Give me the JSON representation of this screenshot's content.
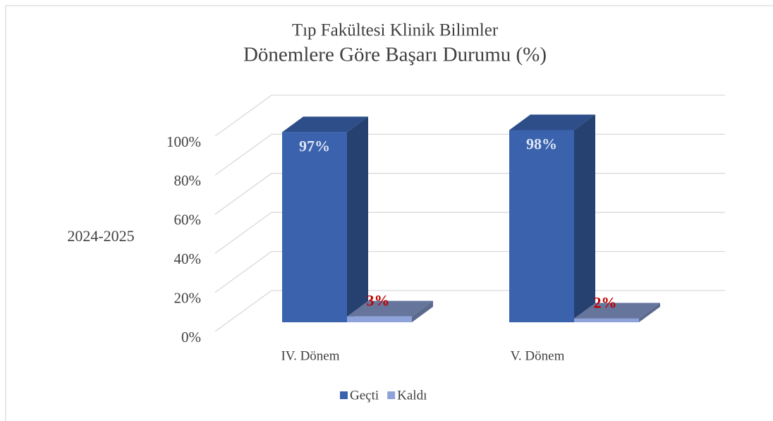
{
  "chart_data": {
    "type": "bar3d",
    "title": "Tıp Fakültesi Klinik Bilimler",
    "subtitle": "Dönemlere Göre Başarı Durumu (%)",
    "ylabel": "2024-2025",
    "categories": [
      "IV. Dönem",
      "V. Dönem"
    ],
    "series": [
      {
        "name": "Geçti",
        "color": "#3a62ad",
        "values": [
          97,
          98
        ],
        "value_labels": [
          "97%",
          "98%"
        ]
      },
      {
        "name": "Kaldı",
        "color": "#8ea3d9",
        "values": [
          3,
          2
        ],
        "value_labels": [
          "3%",
          "2%"
        ]
      }
    ],
    "ylim": [
      0,
      100
    ],
    "yticks": [
      {
        "value": 0,
        "label": "0%"
      },
      {
        "value": 20,
        "label": "20%"
      },
      {
        "value": 40,
        "label": "40%"
      },
      {
        "value": 60,
        "label": "60%"
      },
      {
        "value": 80,
        "label": "80%"
      },
      {
        "value": 100,
        "label": "100%"
      }
    ],
    "grid": true,
    "legend": "bottom"
  }
}
